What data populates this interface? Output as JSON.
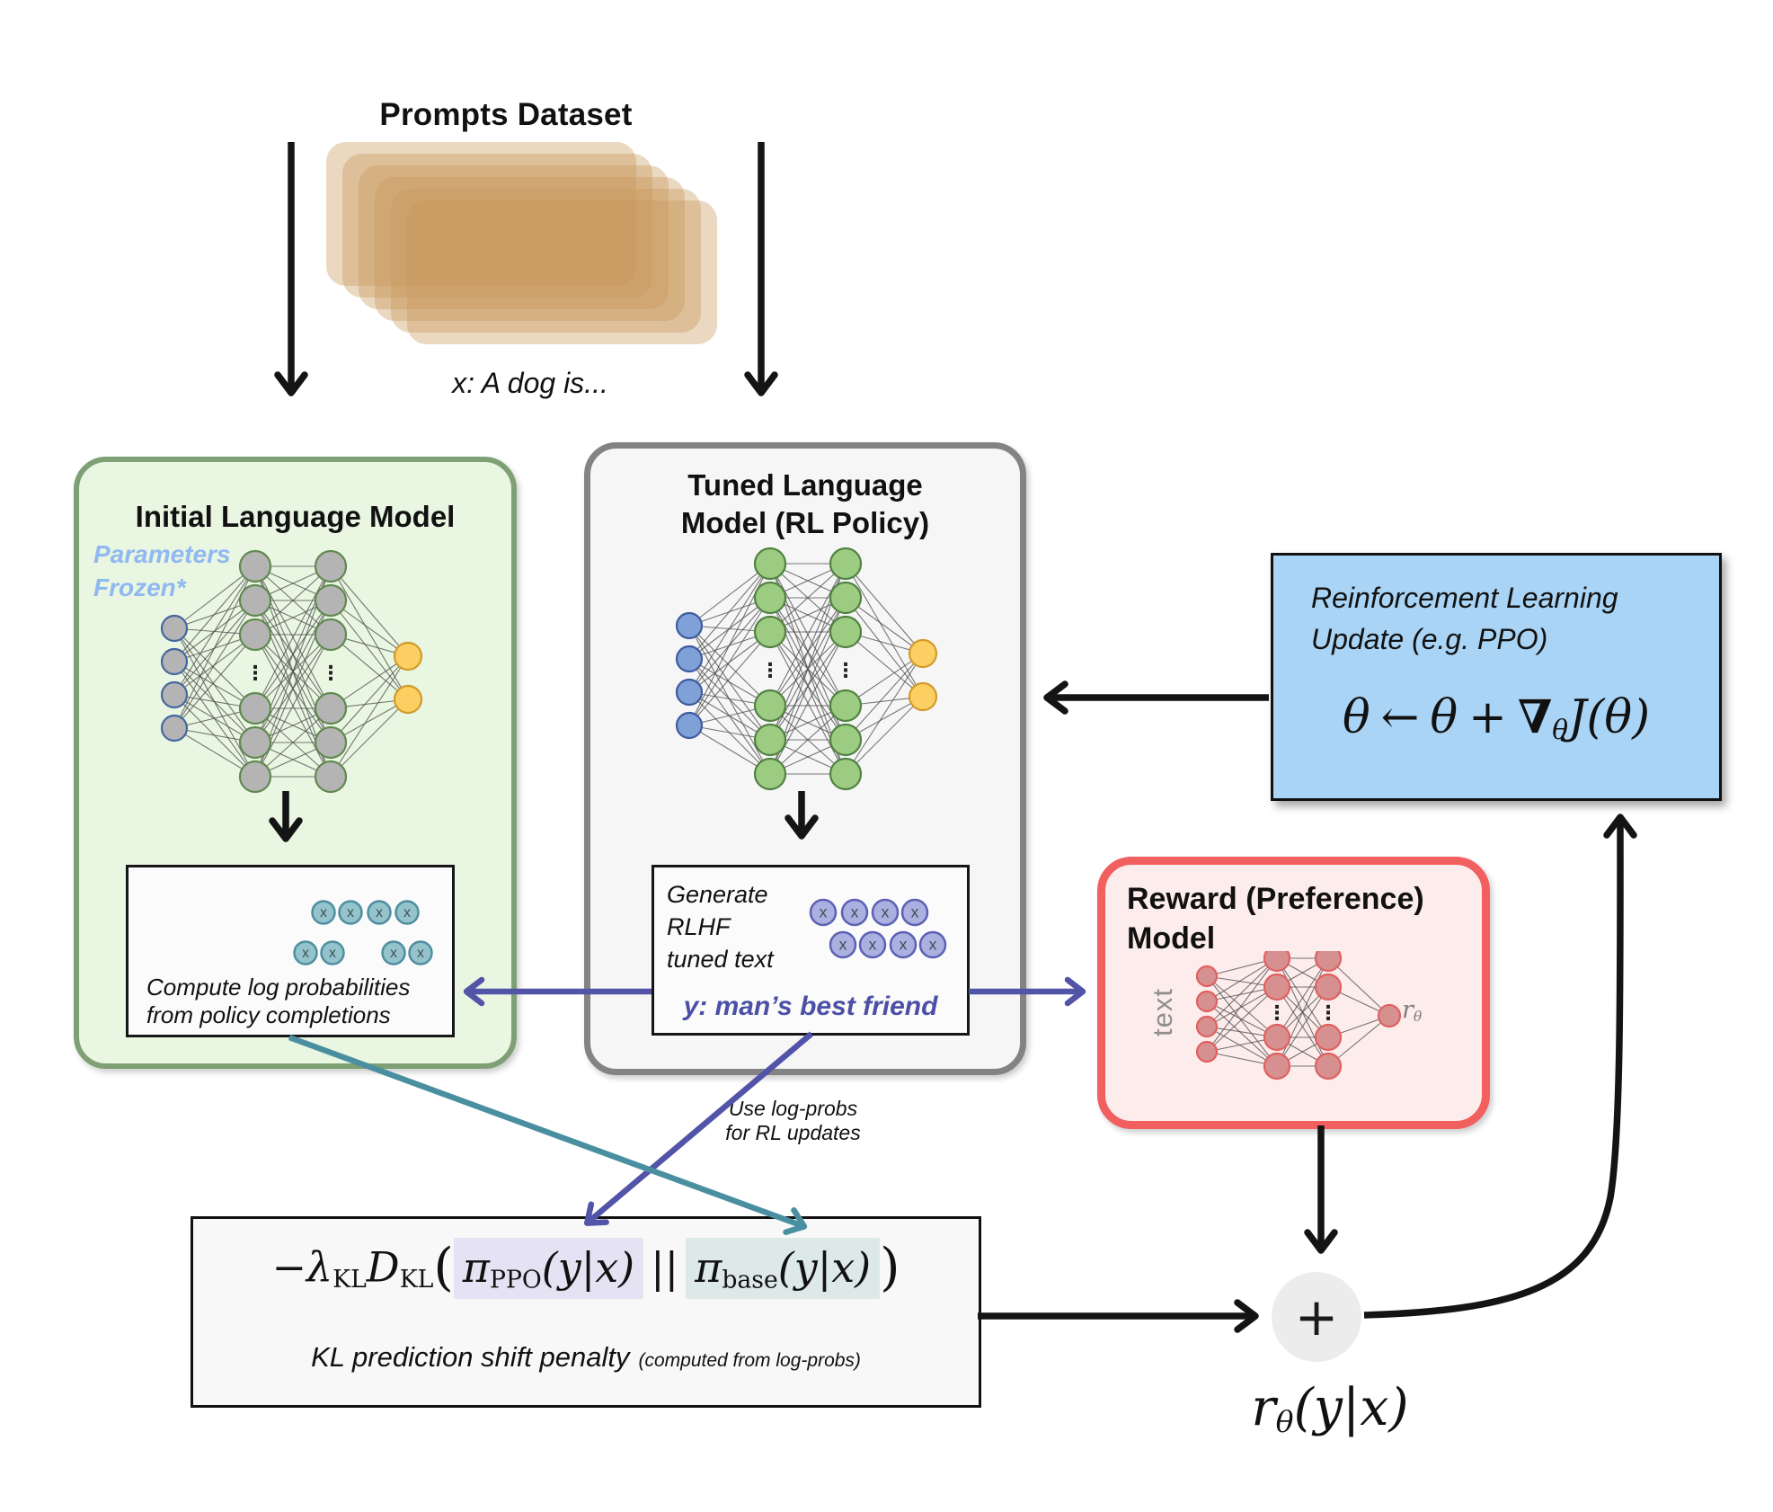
{
  "colors": {
    "card_tan": "#c9995c",
    "green_box_bg": "#e9f6e2",
    "green_box_border": "#7fa074",
    "gray_box_bg": "#f6f6f6",
    "gray_box_border": "#838383",
    "blue_box_bg": "#a9d4f5",
    "red_box_bg": "#fdecec",
    "red_box_border": "#f25f5f",
    "inner_box_bg": "#fbfbfb",
    "inner_box_border": "#161616",
    "kl_box_bg": "#f8f8f8",
    "node_gray": "#b4b4b4",
    "node_stroke_blue": "#46679f",
    "node_stroke_green": "#60894f",
    "node_green": "#9ccb82",
    "node_green_stroke": "#518241",
    "node_blue": "#7fa1d8",
    "node_blue_stroke": "#3f5a9e",
    "node_yellow": "#fccf62",
    "node_yellow_stroke": "#d29a2c",
    "node_pink": "#d79090",
    "node_pink_stroke": "#e06060",
    "edge_gray": "#4a4a4a",
    "token_teal": "#94c3cb",
    "token_teal_stroke": "#4f8fa0",
    "token_purple": "#abb0e0",
    "token_purple_stroke": "#5c61b4",
    "token_glyph_color": "#3f4f55",
    "arrow_black": "#141414",
    "arrow_purple": "#5254a8",
    "arrow_teal": "#4a8fa0",
    "frozen_note_color": "#90b8f1",
    "y_text_color": "#4b4fa6",
    "highlight_ppo": "#e5e2f3",
    "highlight_base": "#dde8e8",
    "rtheta_color": "#7d7d7d",
    "text_rot_color": "#8e8e8e",
    "plus_bg": "#ececec"
  },
  "prompts": {
    "title": "Prompts Dataset",
    "example": "x: A dog is..."
  },
  "initial_model": {
    "title": "Initial Language Model",
    "frozen_line1": "Parameters",
    "frozen_line2": "Frozen*",
    "caption_line1": "Compute log probabilities",
    "caption_line2": "from policy completions"
  },
  "tuned_model": {
    "title_line1": "Tuned Language",
    "title_line2": "Model (RL Policy)",
    "gen_line1": "Generate",
    "gen_line2": "RLHF",
    "gen_line3": "tuned text",
    "output_text": "y: man’s best friend"
  },
  "rl_update": {
    "label_line1": "Reinforcement Learning",
    "label_line2": "Update (e.g. PPO)",
    "formula": {
      "lhs": "θ",
      "arrow": "←",
      "rhs": "θ",
      "plus": "+",
      "nabla": "∇",
      "nabla_sub": "θ",
      "tail": "J(θ)"
    }
  },
  "reward_model": {
    "title_line1": "Reward (Preference)",
    "title_line2": "Model",
    "input_label": "text",
    "output_label": {
      "base": "r",
      "sub": "θ"
    }
  },
  "kl_box": {
    "formula": {
      "neg_lambda": "−λ",
      "lambda_sub": "KL",
      "d": "D",
      "d_sub": "KL",
      "open": "(",
      "pi1": "π",
      "pi1_sub": "PPO",
      "pi1_args": "(y|x)",
      "sep": "||",
      "pi2": "π",
      "pi2_sub": "base",
      "pi2_args": "(y|x)",
      "close": ")"
    },
    "caption": "KL prediction shift penalty",
    "caption_note": "(computed from log-probs)"
  },
  "edge_labels": {
    "use_logprobs_line1": "Use log-probs",
    "use_logprobs_line2": "for RL updates"
  },
  "sum_node": {
    "symbol": "+"
  },
  "reward_output": {
    "base": "r",
    "sub": "θ",
    "args": "(y|x)"
  },
  "tokens": {
    "glyph": "x"
  }
}
